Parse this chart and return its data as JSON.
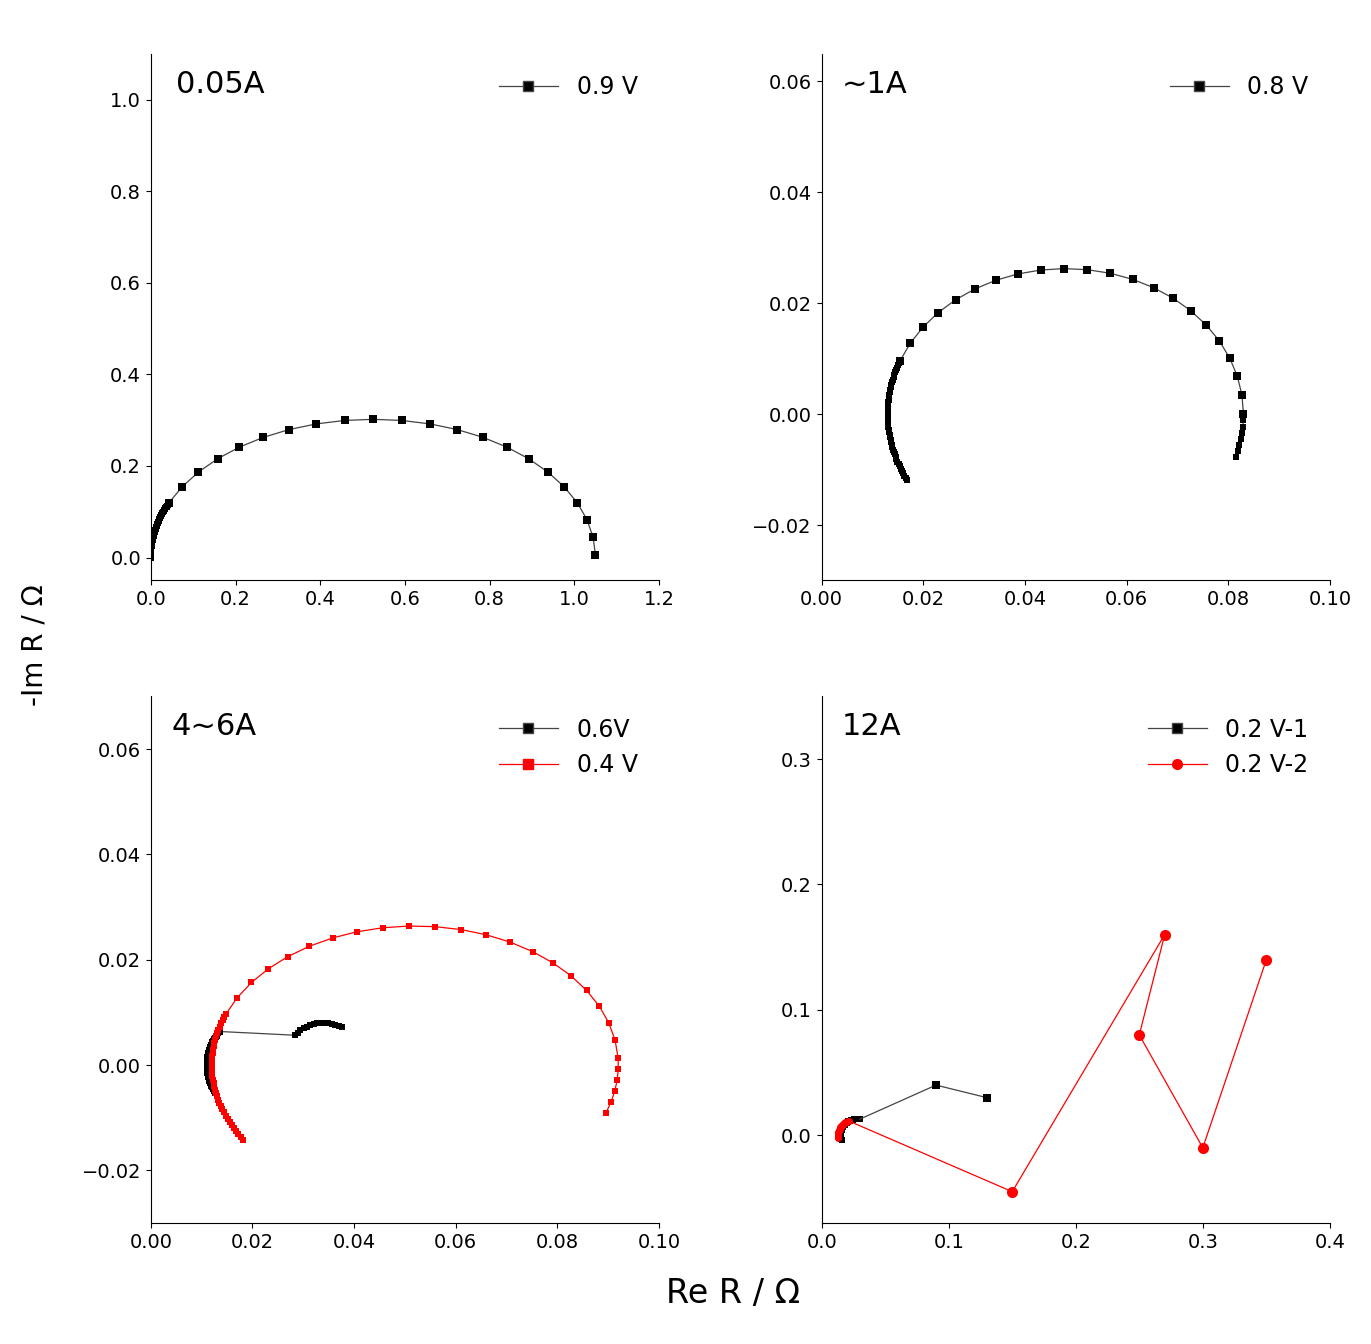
{
  "subplot_labels": [
    "0.05A",
    "~1A",
    "4~6A",
    "12A"
  ],
  "legend_labels_1": [
    "0.9 V"
  ],
  "legend_labels_2": [
    "0.8 V"
  ],
  "legend_labels_3": [
    "0.6V",
    "0.4 V"
  ],
  "legend_labels_4": [
    "0.2 V-1",
    "0.2 V-2"
  ],
  "xlabel": "Re R / Ω",
  "ylabel": "-Im R / Ω",
  "background_color": "#ffffff",
  "xlim1": [
    0.0,
    1.2
  ],
  "ylim1": [
    -0.05,
    1.1
  ],
  "xticks1": [
    0.0,
    0.2,
    0.4,
    0.6,
    0.8,
    1.0,
    1.2
  ],
  "yticks1": [
    0.0,
    0.2,
    0.4,
    0.6,
    0.8,
    1.0
  ],
  "xlim2": [
    0.0,
    0.1
  ],
  "ylim2": [
    -0.03,
    0.065
  ],
  "xticks2": [
    0.0,
    0.02,
    0.04,
    0.06,
    0.08,
    0.1
  ],
  "yticks2": [
    -0.02,
    0.0,
    0.02,
    0.04,
    0.06
  ],
  "xlim3": [
    0.0,
    0.1
  ],
  "ylim3": [
    -0.03,
    0.07
  ],
  "xticks3": [
    0.0,
    0.02,
    0.04,
    0.06,
    0.08,
    0.1
  ],
  "yticks3": [
    -0.02,
    0.0,
    0.02,
    0.04,
    0.06
  ],
  "xlim4": [
    0.0,
    0.4
  ],
  "ylim4": [
    -0.07,
    0.35
  ],
  "xticks4": [
    0.0,
    0.1,
    0.2,
    0.3,
    0.4
  ],
  "yticks4": [
    0.0,
    0.1,
    0.2,
    0.3
  ]
}
